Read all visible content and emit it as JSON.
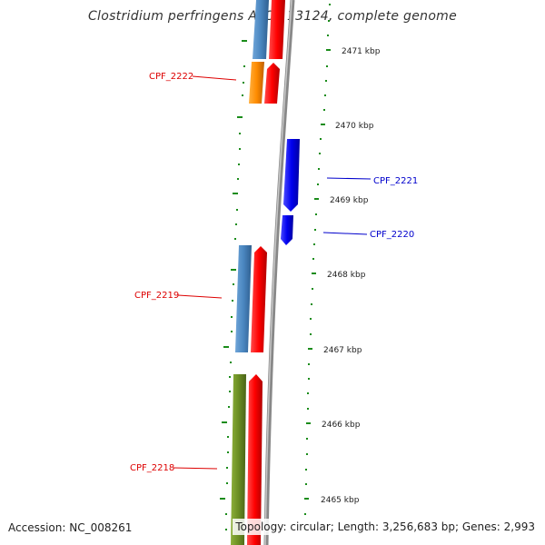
{
  "title": "Clostridium perfringens ATCC 13124, complete genome",
  "accession": "Accession: NC_008261",
  "topology": "Topology: circular; Length: 3,256,683 bp; Genes: 2,993",
  "colors": {
    "backbone": "#888888",
    "gc_ticks": "#1a8c1a",
    "cds_blue": "#4a86c0",
    "cds_red": "#ff0000",
    "cds_orange": "#ff8c00",
    "cds_olive": "#6b8e23",
    "cds_reverse": "#0000ee",
    "label_red": "#dd0000",
    "label_blue": "#0000cc"
  },
  "scale_labels": [
    "2471 kbp",
    "2470 kbp",
    "2469 kbp",
    "2468 kbp",
    "2467 kbp",
    "2466 kbp",
    "2465 kbp"
  ],
  "gene_labels": [
    {
      "name": "CPF_2222",
      "color": "red"
    },
    {
      "name": "CPF_2221",
      "color": "blue"
    },
    {
      "name": "CPF_2220",
      "color": "blue"
    },
    {
      "name": "CPF_2219",
      "color": "red"
    },
    {
      "name": "CPF_2218",
      "color": "red"
    }
  ]
}
